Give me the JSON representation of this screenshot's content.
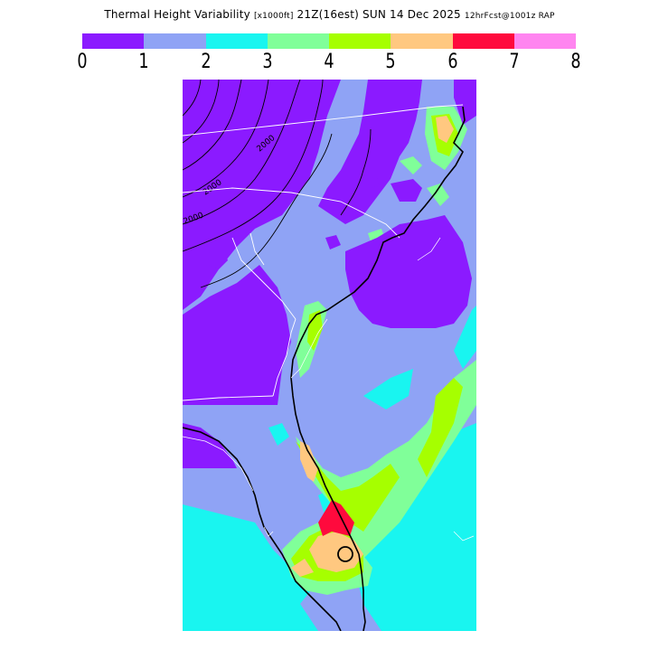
{
  "title": {
    "main": "Thermal Height Variability",
    "units": "[x1000ft]",
    "valid": "21Z(16est) SUN 14 Dec 2025",
    "forecast": "12hrFcst@1001z RAP"
  },
  "legend": {
    "colors": [
      "#8b1aff",
      "#8fa3f5",
      "#19f5f0",
      "#80ff99",
      "#a6ff00",
      "#ffc880",
      "#ff0a3d",
      "#ff85f0"
    ],
    "ticks": [
      "0",
      "1",
      "2",
      "3",
      "4",
      "5",
      "6",
      "7",
      "8"
    ]
  },
  "map": {
    "contour_labels": [
      "2000",
      "2000",
      "2000"
    ],
    "colors": {
      "land_default": "#8fa3f5",
      "low": "#8b1aff",
      "cyan": "#19f5f0",
      "green": "#80ff99",
      "lime": "#a6ff00",
      "orange": "#ffc880",
      "red": "#ff0a3d"
    }
  }
}
